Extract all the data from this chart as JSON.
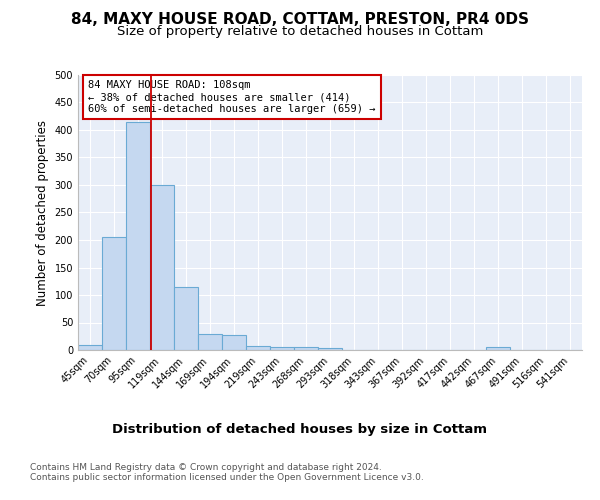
{
  "title1": "84, MAXY HOUSE ROAD, COTTAM, PRESTON, PR4 0DS",
  "title2": "Size of property relative to detached houses in Cottam",
  "xlabel": "Distribution of detached houses by size in Cottam",
  "ylabel": "Number of detached properties",
  "bar_labels": [
    "45sqm",
    "70sqm",
    "95sqm",
    "119sqm",
    "144sqm",
    "169sqm",
    "194sqm",
    "219sqm",
    "243sqm",
    "268sqm",
    "293sqm",
    "318sqm",
    "343sqm",
    "367sqm",
    "392sqm",
    "417sqm",
    "442sqm",
    "467sqm",
    "491sqm",
    "516sqm",
    "541sqm"
  ],
  "bar_values": [
    10,
    205,
    414,
    300,
    115,
    30,
    27,
    8,
    5,
    5,
    3,
    0,
    0,
    0,
    0,
    0,
    0,
    5,
    0,
    0,
    0
  ],
  "bar_color": "#c5d8f0",
  "bar_edge_color": "#6aaad4",
  "bar_linewidth": 0.8,
  "red_line_x": 2.55,
  "red_line_color": "#cc0000",
  "annotation_text": "84 MAXY HOUSE ROAD: 108sqm\n← 38% of detached houses are smaller (414)\n60% of semi-detached houses are larger (659) →",
  "annotation_box_color": "#ffffff",
  "annotation_box_edge": "#cc0000",
  "ylim": [
    0,
    500
  ],
  "yticks": [
    0,
    50,
    100,
    150,
    200,
    250,
    300,
    350,
    400,
    450,
    500
  ],
  "footnote": "Contains HM Land Registry data © Crown copyright and database right 2024.\nContains public sector information licensed under the Open Government Licence v3.0.",
  "bg_color": "#ffffff",
  "plot_bg_color": "#e8eef8",
  "grid_color": "#ffffff",
  "title1_fontsize": 11,
  "title2_fontsize": 9.5,
  "xlabel_fontsize": 9.5,
  "ylabel_fontsize": 8.5,
  "tick_fontsize": 7,
  "annot_fontsize": 7.5,
  "footnote_fontsize": 6.5
}
